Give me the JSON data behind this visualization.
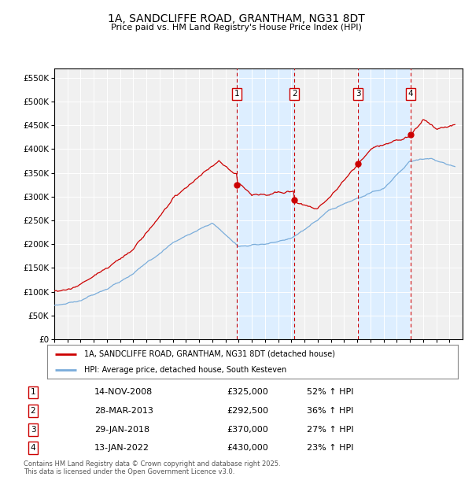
{
  "title": "1A, SANDCLIFFE ROAD, GRANTHAM, NG31 8DT",
  "subtitle": "Price paid vs. HM Land Registry's House Price Index (HPI)",
  "ylim": [
    0,
    570000
  ],
  "yticks": [
    0,
    50000,
    100000,
    150000,
    200000,
    250000,
    300000,
    350000,
    400000,
    450000,
    500000,
    550000
  ],
  "ytick_labels": [
    "£0",
    "£50K",
    "£100K",
    "£150K",
    "£200K",
    "£250K",
    "£300K",
    "£350K",
    "£400K",
    "£450K",
    "£500K",
    "£550K"
  ],
  "xmin": 1995.0,
  "xmax": 2026.0,
  "sale_color": "#cc0000",
  "hpi_color": "#7aaddb",
  "vline_color": "#cc0000",
  "shade_color": "#ddeeff",
  "sale_dates": [
    2008.87,
    2013.24,
    2018.08,
    2022.04
  ],
  "sale_prices": [
    325000,
    292500,
    370000,
    430000
  ],
  "sale_labels": [
    "1",
    "2",
    "3",
    "4"
  ],
  "legend_sale_label": "1A, SANDCLIFFE ROAD, GRANTHAM, NG31 8DT (detached house)",
  "legend_hpi_label": "HPI: Average price, detached house, South Kesteven",
  "table_entries": [
    {
      "num": "1",
      "date": "14-NOV-2008",
      "price": "£325,000",
      "hpi": "52% ↑ HPI"
    },
    {
      "num": "2",
      "date": "28-MAR-2013",
      "price": "£292,500",
      "hpi": "36% ↑ HPI"
    },
    {
      "num": "3",
      "date": "29-JAN-2018",
      "price": "£370,000",
      "hpi": "27% ↑ HPI"
    },
    {
      "num": "4",
      "date": "13-JAN-2022",
      "price": "£430,000",
      "hpi": "23% ↑ HPI"
    }
  ],
  "footer": "Contains HM Land Registry data © Crown copyright and database right 2025.\nThis data is licensed under the Open Government Licence v3.0.",
  "background_color": "#ffffff",
  "plot_bg_color": "#f0f0f0"
}
